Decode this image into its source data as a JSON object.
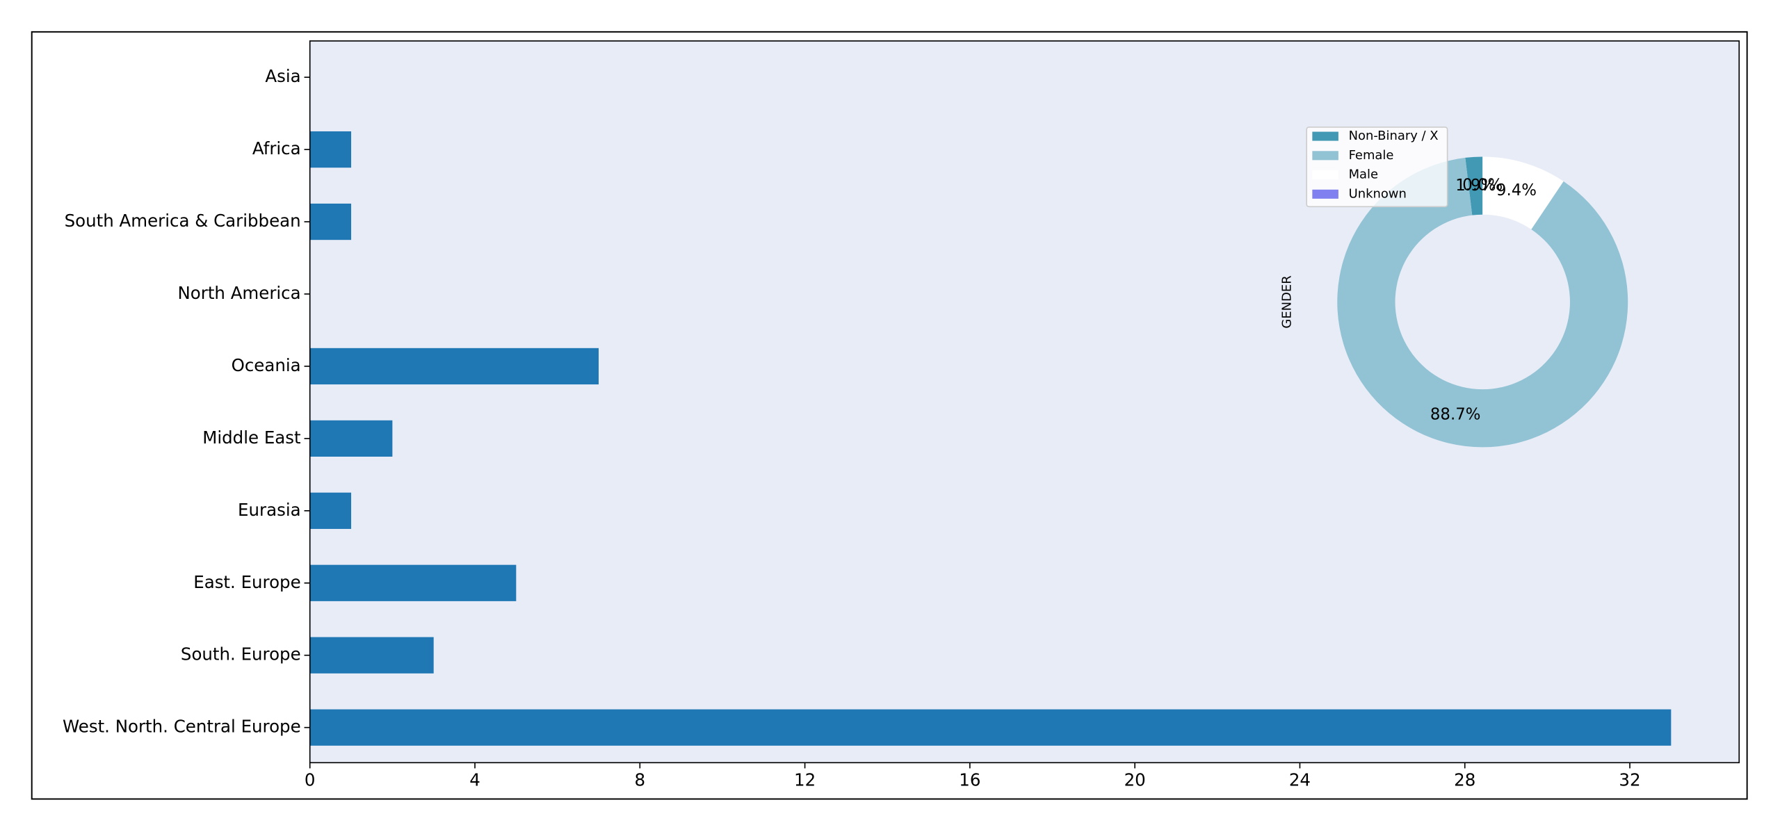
{
  "chart_data": [
    {
      "type": "barh",
      "categories": [
        "Asia",
        "Africa",
        "South America & Caribbean",
        "North America",
        "Oceania",
        "Middle East",
        "Eurasia",
        "East. Europe",
        "South. Europe",
        "West. North. Central Europe"
      ],
      "values": [
        0,
        1,
        1,
        0,
        7,
        2,
        1,
        5,
        3,
        33
      ],
      "color": "#1f77b4",
      "xlim": [
        0,
        34.65
      ],
      "xticks": [
        0,
        4,
        8,
        12,
        16,
        20,
        24,
        28,
        32
      ],
      "background": "#e8ecf7"
    },
    {
      "type": "pie",
      "ylabel": "GENDER",
      "categories": [
        "Non-Binary / X",
        "Female",
        "Male",
        "Unknown"
      ],
      "values": [
        1.9,
        88.7,
        9.4,
        0.0
      ],
      "value_labels": [
        "1.9%",
        "88.7%",
        "9.4%",
        "0.0%"
      ],
      "colors": [
        "#4299b4",
        "#92c3d4",
        "#ffffff",
        "#8080f0"
      ],
      "donut": true,
      "legend": "upper left"
    }
  ]
}
